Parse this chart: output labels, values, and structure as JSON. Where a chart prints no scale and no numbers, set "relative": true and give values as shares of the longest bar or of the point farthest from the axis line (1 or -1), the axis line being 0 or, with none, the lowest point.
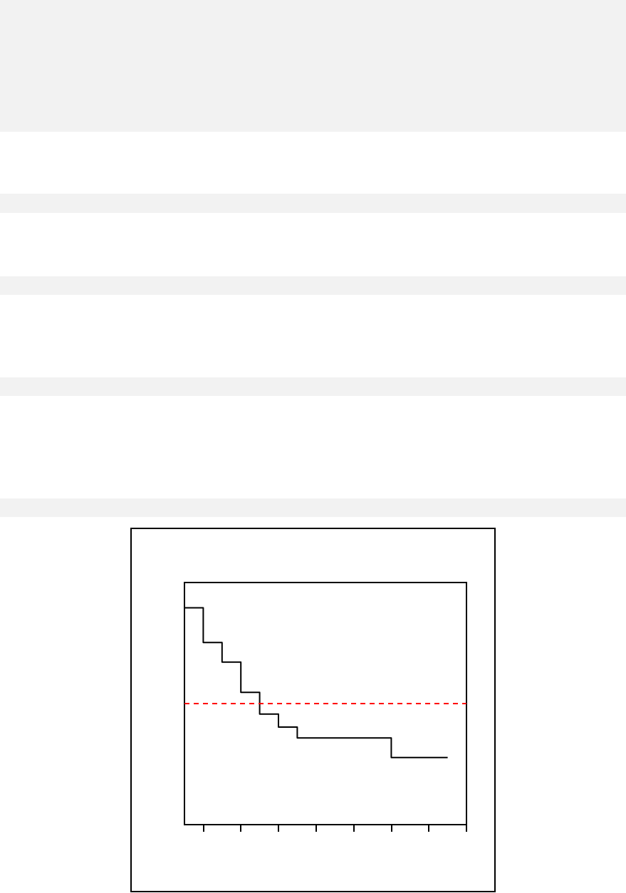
{
  "chart_data": {
    "type": "step",
    "relative": true,
    "categories": [
      null,
      null,
      null,
      null,
      null,
      null,
      null,
      null,
      null,
      null,
      null,
      null,
      null,
      null,
      null,
      null
    ],
    "values": [
      1.0,
      0.84,
      0.75,
      0.61,
      0.51,
      0.45,
      0.4,
      0.4,
      0.4,
      0.4,
      0.4,
      0.31,
      0.31,
      0.31,
      0.31,
      null
    ],
    "color": "#000000",
    "marker": "none",
    "ref_lines": [
      {
        "axis": "y",
        "value": 0.56,
        "color": "#ff0000",
        "line_style": "dashed"
      }
    ]
  }
}
